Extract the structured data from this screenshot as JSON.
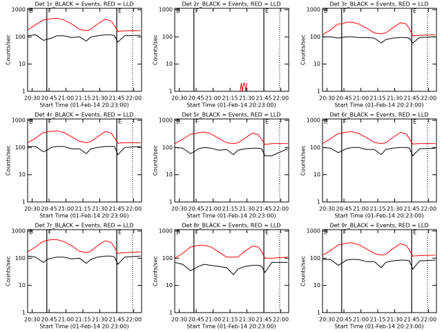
{
  "chart_data": [
    {
      "type": "line",
      "title": "Det 1r_BLACK = Events, RED = LLD",
      "xlabel": "Start Time (01-Feb-14 20:23:00)",
      "ylabel": "Counts/sec",
      "log_y": true,
      "x": [
        "20:26",
        "20:33",
        "20:40",
        "20:43",
        "20:47",
        "20:52",
        "20:58",
        "21:05",
        "21:12",
        "21:18",
        "21:22",
        "21:28",
        "21:35",
        "21:40",
        "21:43",
        "21:46",
        "21:52",
        "22:06"
      ],
      "series": [
        {
          "color": "#000000",
          "values": [
            110,
            120,
            75,
            80,
            90,
            110,
            110,
            95,
            100,
            70,
            100,
            110,
            120,
            120,
            110,
            65,
            110,
            115
          ]
        },
        {
          "color": "#ff0000",
          "values": [
            180,
            280,
            420,
            430,
            470,
            480,
            420,
            300,
            190,
            170,
            190,
            300,
            450,
            380,
            260,
            160,
            165,
            170
          ]
        }
      ],
      "xlim": [
        "20:26",
        "22:07"
      ],
      "xticks": [
        "20:30",
        "20:45",
        "21:00",
        "21:15",
        "21:30",
        "21:45",
        "22:00"
      ],
      "ylim": [
        1,
        1125
      ],
      "yticks": [
        1,
        10,
        100,
        1000
      ],
      "markers": [
        {
          "x": "20:26",
          "label": "E",
          "style": "dotted"
        },
        {
          "x": "20:43",
          "label": "F",
          "style": "solid"
        },
        {
          "x": "21:45",
          "label": "E",
          "style": "solid"
        },
        {
          "x": "21:59",
          "style": "dotted"
        }
      ]
    },
    {
      "type": "line",
      "title": "Det 2r_BLACK = Events, RED = LLD",
      "xlabel": "Start Time (01-Feb-14 20:23:00)",
      "ylabel": "Counts/sec",
      "log_y": true,
      "x": [
        "21:24",
        "21:25",
        "21:26",
        "21:27",
        "21:28",
        "21:29",
        "21:30"
      ],
      "series": [
        {
          "color": "#ff0000",
          "values": [
            1,
            2,
            1,
            2,
            2,
            1,
            2
          ]
        }
      ],
      "xlim": [
        "20:26",
        "22:07"
      ],
      "xticks": [
        "20:30",
        "20:45",
        "21:00",
        "21:15",
        "21:30",
        "21:45",
        "22:00"
      ],
      "ylim": [
        1,
        1125
      ],
      "yticks": [
        1,
        10,
        100,
        1000
      ],
      "markers": [
        {
          "x": "20:26",
          "label": "E",
          "style": "dotted"
        },
        {
          "x": "20:43",
          "label": "F",
          "style": "solid"
        },
        {
          "x": "21:45",
          "label": "E",
          "style": "solid"
        },
        {
          "x": "21:59",
          "style": "dotted"
        }
      ]
    },
    {
      "type": "line",
      "title": "Det 3r_BLACK = Events, RED = LLD",
      "xlabel": "Start Time (01-Feb-14 20:23:00)",
      "ylabel": "Counts/sec",
      "log_y": true,
      "x": [
        "20:26",
        "20:33",
        "20:40",
        "20:43",
        "20:47",
        "20:52",
        "20:58",
        "21:05",
        "21:12",
        "21:18",
        "21:22",
        "21:28",
        "21:35",
        "21:40",
        "21:43",
        "21:46",
        "21:52",
        "22:06"
      ],
      "series": [
        {
          "color": "#000000",
          "values": [
            100,
            100,
            90,
            95,
            100,
            100,
            95,
            95,
            90,
            60,
            80,
            90,
            95,
            95,
            90,
            60,
            95,
            100
          ]
        },
        {
          "color": "#ff0000",
          "values": [
            120,
            180,
            300,
            300,
            340,
            350,
            300,
            210,
            140,
            130,
            140,
            210,
            330,
            300,
            200,
            110,
            115,
            120
          ]
        }
      ],
      "xlim": [
        "20:26",
        "22:07"
      ],
      "xticks": [
        "20:30",
        "20:45",
        "21:00",
        "21:15",
        "21:30",
        "21:45",
        "22:00"
      ],
      "ylim": [
        1,
        1125
      ],
      "yticks": [
        1,
        10,
        100,
        1000
      ],
      "markers": [
        {
          "x": "20:26",
          "label": "E",
          "style": "dotted"
        },
        {
          "x": "20:43",
          "label": "F",
          "style": "solid"
        },
        {
          "x": "21:45",
          "label": "E",
          "style": "solid"
        },
        {
          "x": "21:59",
          "style": "dotted"
        }
      ]
    },
    {
      "type": "line",
      "title": "Det 4r_BLACK = Events, RED = LLD",
      "xlabel": "Start Time (01-Feb-14 20:23:00)",
      "ylabel": "Counts/sec",
      "log_y": true,
      "x": [
        "20:26",
        "20:33",
        "20:40",
        "20:43",
        "20:47",
        "20:52",
        "20:58",
        "21:05",
        "21:12",
        "21:18",
        "21:22",
        "21:28",
        "21:35",
        "21:40",
        "21:43",
        "21:46",
        "21:52",
        "22:06"
      ],
      "series": [
        {
          "color": "#000000",
          "values": [
            110,
            110,
            70,
            80,
            100,
            110,
            110,
            90,
            90,
            60,
            90,
            100,
            110,
            110,
            110,
            55,
            100,
            110
          ]
        },
        {
          "color": "#ff0000",
          "values": [
            150,
            220,
            360,
            370,
            400,
            410,
            360,
            250,
            170,
            150,
            165,
            250,
            390,
            340,
            230,
            145,
            150,
            150
          ]
        }
      ],
      "xlim": [
        "20:26",
        "22:07"
      ],
      "xticks": [
        "20:30",
        "20:45",
        "21:00",
        "21:15",
        "21:30",
        "21:45",
        "22:00"
      ],
      "ylim": [
        1,
        1125
      ],
      "yticks": [
        1,
        10,
        100,
        1000
      ],
      "markers": [
        {
          "x": "20:26",
          "label": "E",
          "style": "dotted"
        },
        {
          "x": "20:43",
          "label": "F",
          "style": "solid"
        },
        {
          "x": "21:45",
          "label": "E",
          "style": "solid"
        },
        {
          "x": "21:59",
          "style": "dotted"
        }
      ]
    },
    {
      "type": "line",
      "title": "Det 5r_BLACK = Events, RED = LLD",
      "xlabel": "Start Time (01-Feb-14 20:23:00)",
      "ylabel": "Counts/sec",
      "log_y": true,
      "x": [
        "20:26",
        "20:33",
        "20:40",
        "20:43",
        "20:47",
        "20:52",
        "20:58",
        "21:05",
        "21:12",
        "21:18",
        "21:22",
        "21:28",
        "21:35",
        "21:40",
        "21:43",
        "21:46",
        "21:52",
        "22:06"
      ],
      "series": [
        {
          "color": "#000000",
          "values": [
            100,
            95,
            60,
            70,
            90,
            100,
            95,
            80,
            85,
            55,
            80,
            90,
            95,
            95,
            90,
            50,
            50,
            90
          ]
        },
        {
          "color": "#ff0000",
          "values": [
            140,
            200,
            310,
            320,
            350,
            370,
            320,
            220,
            150,
            140,
            150,
            220,
            340,
            300,
            200,
            130,
            140,
            140
          ]
        }
      ],
      "xlim": [
        "20:26",
        "22:07"
      ],
      "xticks": [
        "20:30",
        "20:45",
        "21:00",
        "21:15",
        "21:30",
        "21:45",
        "22:00"
      ],
      "ylim": [
        1,
        1125
      ],
      "yticks": [
        1,
        10,
        100,
        1000
      ],
      "markers": [
        {
          "x": "20:26",
          "label": "E",
          "style": "dotted"
        },
        {
          "x": "20:43",
          "label": "F",
          "style": "solid"
        },
        {
          "x": "21:45",
          "label": "E",
          "style": "solid"
        },
        {
          "x": "21:59",
          "style": "dotted"
        }
      ]
    },
    {
      "type": "line",
      "title": "Det 6r_BLACK = Events, RED = LLD",
      "xlabel": "Start Time (01-Feb-14 20:23:00)",
      "ylabel": "Counts/sec",
      "log_y": true,
      "x": [
        "20:26",
        "20:33",
        "20:40",
        "20:43",
        "20:47",
        "20:52",
        "20:58",
        "21:05",
        "21:12",
        "21:18",
        "21:22",
        "21:28",
        "21:35",
        "21:40",
        "21:43",
        "21:46",
        "21:52",
        "22:06"
      ],
      "series": [
        {
          "color": "#000000",
          "values": [
            100,
            95,
            65,
            75,
            90,
            100,
            100,
            85,
            85,
            55,
            85,
            95,
            100,
            100,
            95,
            50,
            90,
            95
          ]
        },
        {
          "color": "#ff0000",
          "values": [
            140,
            210,
            330,
            340,
            370,
            380,
            330,
            230,
            155,
            140,
            150,
            230,
            360,
            320,
            210,
            135,
            140,
            140
          ]
        }
      ],
      "xlim": [
        "20:26",
        "22:07"
      ],
      "xticks": [
        "20:30",
        "20:45",
        "21:00",
        "21:15",
        "21:30",
        "21:45",
        "22:00"
      ],
      "ylim": [
        1,
        1125
      ],
      "yticks": [
        1,
        10,
        100,
        1000
      ],
      "markers": [
        {
          "x": "20:26",
          "label": "E",
          "style": "dotted"
        },
        {
          "x": "20:43",
          "label": "F",
          "style": "solid"
        },
        {
          "x": "21:45",
          "label": "E",
          "style": "solid"
        },
        {
          "x": "21:59",
          "style": "dotted"
        }
      ]
    },
    {
      "type": "line",
      "title": "Det 7r_BLACK = Events, RED = LLD",
      "xlabel": "Start Time (01-Feb-14 20:23:00)",
      "ylabel": "Counts/sec",
      "log_y": true,
      "x": [
        "20:26",
        "20:33",
        "20:40",
        "20:43",
        "20:47",
        "20:52",
        "20:58",
        "21:05",
        "21:12",
        "21:18",
        "21:22",
        "21:28",
        "21:35",
        "21:40",
        "21:43",
        "21:46",
        "21:52",
        "22:06"
      ],
      "series": [
        {
          "color": "#000000",
          "values": [
            120,
            110,
            70,
            90,
            100,
            110,
            110,
            95,
            100,
            65,
            90,
            110,
            120,
            120,
            110,
            60,
            110,
            120
          ]
        },
        {
          "color": "#ff0000",
          "values": [
            170,
            260,
            420,
            450,
            480,
            480,
            410,
            290,
            180,
            160,
            180,
            290,
            440,
            380,
            250,
            150,
            160,
            170
          ]
        }
      ],
      "xlim": [
        "20:26",
        "22:07"
      ],
      "xticks": [
        "20:30",
        "20:45",
        "21:00",
        "21:15",
        "21:30",
        "21:45",
        "22:00"
      ],
      "ylim": [
        1,
        1125
      ],
      "yticks": [
        1,
        10,
        100,
        1000
      ],
      "markers": [
        {
          "x": "20:26",
          "label": "E",
          "style": "dotted"
        },
        {
          "x": "20:43",
          "label": "F",
          "style": "solid"
        },
        {
          "x": "21:45",
          "label": "E",
          "style": "solid"
        },
        {
          "x": "21:59",
          "style": "dotted"
        }
      ]
    },
    {
      "type": "line",
      "title": "Det 8r_BLACK = Events, RED = LLD",
      "xlabel": "Start Time (01-Feb-14 20:23:00)",
      "ylabel": "Counts/sec",
      "log_y": true,
      "x": [
        "20:26",
        "20:33",
        "20:40",
        "20:43",
        "20:47",
        "20:52",
        "20:58",
        "21:05",
        "21:12",
        "21:18",
        "21:22",
        "21:28",
        "21:35",
        "21:40",
        "21:43",
        "21:46",
        "21:52",
        "22:06"
      ],
      "series": [
        {
          "color": "#000000",
          "values": [
            70,
            60,
            35,
            40,
            50,
            60,
            55,
            50,
            45,
            25,
            40,
            50,
            55,
            55,
            50,
            30,
            70,
            70
          ]
        },
        {
          "color": "#ff0000",
          "values": [
            100,
            150,
            260,
            270,
            300,
            300,
            260,
            170,
            110,
            110,
            110,
            180,
            280,
            260,
            180,
            100,
            100,
            110
          ]
        }
      ],
      "xlim": [
        "20:26",
        "22:07"
      ],
      "xticks": [
        "20:30",
        "20:45",
        "21:00",
        "21:15",
        "21:30",
        "21:45",
        "22:00"
      ],
      "ylim": [
        1,
        1125
      ],
      "yticks": [
        1,
        10,
        100,
        1000
      ],
      "markers": [
        {
          "x": "20:26",
          "label": "E",
          "style": "dotted"
        },
        {
          "x": "20:43",
          "label": "F",
          "style": "solid"
        },
        {
          "x": "21:45",
          "label": "E",
          "style": "solid"
        },
        {
          "x": "21:59",
          "style": "dotted"
        }
      ]
    },
    {
      "type": "line",
      "title": "Det 9r_BLACK = Events, RED = LLD",
      "xlabel": "Start Time (01-Feb-14 20:23:00)",
      "ylabel": "Counts/sec",
      "log_y": true,
      "x": [
        "20:26",
        "20:33",
        "20:40",
        "20:43",
        "20:47",
        "20:52",
        "20:58",
        "21:05",
        "21:12",
        "21:18",
        "21:22",
        "21:28",
        "21:35",
        "21:40",
        "21:43",
        "21:46",
        "21:52",
        "22:06"
      ],
      "series": [
        {
          "color": "#000000",
          "values": [
            90,
            90,
            55,
            65,
            85,
            90,
            90,
            75,
            75,
            45,
            70,
            80,
            85,
            85,
            80,
            40,
            80,
            85
          ]
        },
        {
          "color": "#ff0000",
          "values": [
            130,
            190,
            310,
            320,
            360,
            370,
            320,
            220,
            150,
            130,
            140,
            220,
            340,
            300,
            200,
            120,
            125,
            130
          ]
        }
      ],
      "xlim": [
        "20:26",
        "22:07"
      ],
      "xticks": [
        "20:30",
        "20:45",
        "21:00",
        "21:15",
        "21:30",
        "21:45",
        "22:00"
      ],
      "ylim": [
        1,
        1125
      ],
      "yticks": [
        1,
        10,
        100,
        1000
      ],
      "markers": [
        {
          "x": "20:26",
          "label": "E",
          "style": "dotted"
        },
        {
          "x": "20:43",
          "label": "F",
          "style": "solid"
        },
        {
          "x": "21:45",
          "label": "E",
          "style": "solid"
        },
        {
          "x": "21:59",
          "style": "dotted"
        }
      ]
    }
  ]
}
